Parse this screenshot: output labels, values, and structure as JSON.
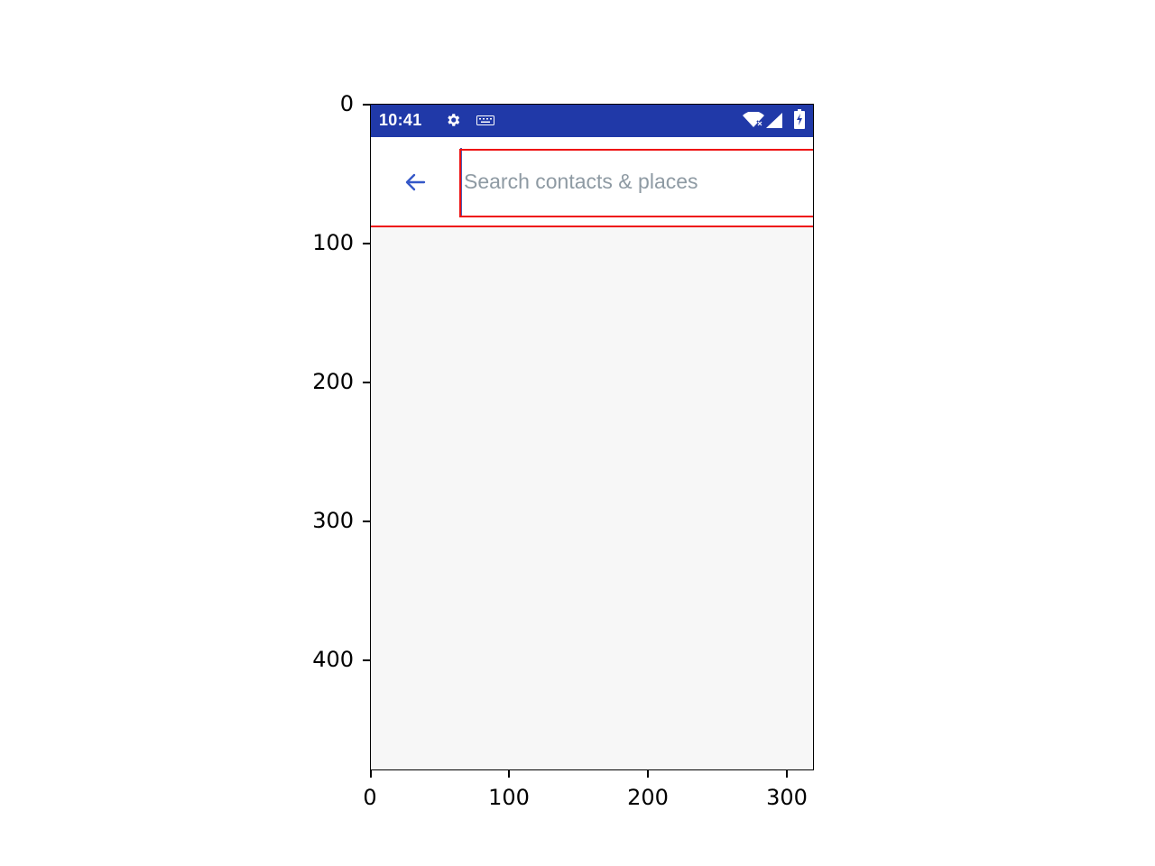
{
  "status_bar": {
    "time": "10:41",
    "background_color": "#2039a8",
    "icons": [
      "gear-icon",
      "keyboard-icon",
      "wifi-icon",
      "signal-icon",
      "battery-icon"
    ]
  },
  "search_bar": {
    "back_icon": "arrow-left-icon",
    "placeholder": "Search contacts & places",
    "value": ""
  },
  "axes": {
    "y_ticks": [
      "0",
      "100",
      "200",
      "300",
      "400"
    ],
    "x_ticks": [
      "0",
      "100",
      "200",
      "300"
    ]
  },
  "colors": {
    "accent": "#3558c8",
    "annotation": "#ee1111",
    "content_bg": "#f7f7f7"
  }
}
